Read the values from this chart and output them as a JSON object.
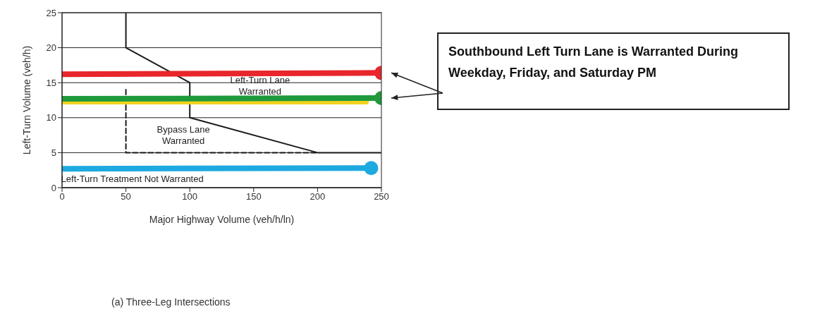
{
  "chart_data": {
    "type": "line",
    "xlabel": "Major Highway Volume (veh/h/ln)",
    "ylabel": "Left-Turn Volume (veh/h)",
    "xlim": [
      0,
      250
    ],
    "ylim": [
      0,
      25
    ],
    "xticks": [
      0,
      50,
      100,
      150,
      200,
      250
    ],
    "yticks": [
      0,
      5,
      10,
      15,
      20,
      25
    ],
    "grid": "y",
    "series": [
      {
        "color": "#1a1a1a",
        "x": [
          50,
          50,
          100,
          100,
          200,
          250
        ],
        "values": [
          25,
          20,
          15,
          10,
          5,
          5
        ],
        "line_style": "solid",
        "marker": "none"
      },
      {
        "color": "#1a1a1a",
        "x": [
          50,
          50,
          200
        ],
        "values": [
          14,
          5,
          5
        ],
        "line_style": "dashed",
        "marker": "none"
      },
      {
        "color": "#e8262b",
        "x": [
          0,
          250
        ],
        "values": [
          16.2,
          16.4
        ],
        "line_style": "solid",
        "marker": "none"
      },
      {
        "color": "#f2d21f",
        "x": [
          0,
          238
        ],
        "values": [
          12.3,
          12.3
        ],
        "line_style": "solid",
        "marker": "none"
      },
      {
        "color": "#1e9a3c",
        "x": [
          0,
          250
        ],
        "values": [
          12.7,
          12.8
        ],
        "line_style": "solid",
        "marker": "none"
      },
      {
        "color": "#1ea9e1",
        "x": [
          0,
          242
        ],
        "values": [
          2.7,
          2.8
        ],
        "line_style": "solid",
        "marker": "none"
      },
      {
        "type": "scatter",
        "color": "#e8262b",
        "x": [
          250
        ],
        "values": [
          16.4
        ],
        "marker": "circle"
      },
      {
        "type": "scatter",
        "color": "#1e9a3c",
        "x": [
          250
        ],
        "values": [
          12.8
        ],
        "marker": "circle"
      },
      {
        "type": "scatter",
        "color": "#1ea9e1",
        "x": [
          242
        ],
        "values": [
          2.8
        ],
        "marker": "circle"
      }
    ],
    "annotations": [
      "Left-Turn Lane Warranted",
      "Bypass Lane Warranted",
      "Left-Turn Treatment Not Warranted",
      "Southbound Left Turn Lane is Warranted During Weekday, Friday, and Saturday PM",
      "(a) Three-Leg Intersections"
    ]
  }
}
